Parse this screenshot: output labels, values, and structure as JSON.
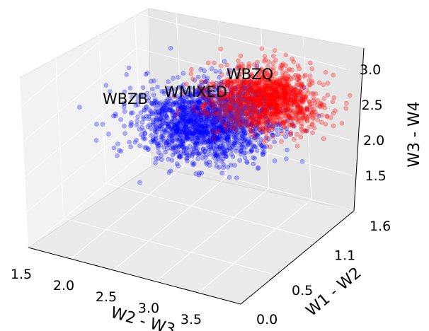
{
  "chart_data": {
    "type": "scatter",
    "projection": "3d",
    "xlabel": "W2 - W3",
    "ylabel": "W1 - W2",
    "zlabel": "W3 - W4",
    "xlim": [
      1.5,
      4.0
    ],
    "ylim": [
      0.0,
      1.6
    ],
    "zlim": [
      1.0,
      3.4
    ],
    "x_ticks": [
      "1.5",
      "2.0",
      "2.5",
      "3.0",
      "3.5"
    ],
    "y_ticks": [
      "0.0",
      "0.5",
      "1.1",
      "1.6"
    ],
    "z_ticks": [
      "1.5",
      "2.0",
      "2.5",
      "3.0"
    ],
    "grid": true,
    "series": [
      {
        "name": "WBZB",
        "color": "#0000ff",
        "center": {
          "x": 2.55,
          "y": 1.28,
          "z": 2.05
        },
        "spread": {
          "x": 0.35,
          "y": 0.22,
          "z": 0.18
        },
        "count": 1600
      },
      {
        "name": "WBZQ",
        "color": "#ff0000",
        "center": {
          "x": 3.4,
          "y": 1.15,
          "z": 2.75
        },
        "spread": {
          "x": 0.28,
          "y": 0.17,
          "z": 0.14
        },
        "count": 1400
      },
      {
        "name": "WMIXED",
        "color": "#7a2a9a",
        "center": {
          "x": 2.95,
          "y": 1.25,
          "z": 2.4
        },
        "spread": {
          "x": 0.16,
          "y": 0.1,
          "z": 0.1
        },
        "count": 140
      }
    ]
  }
}
